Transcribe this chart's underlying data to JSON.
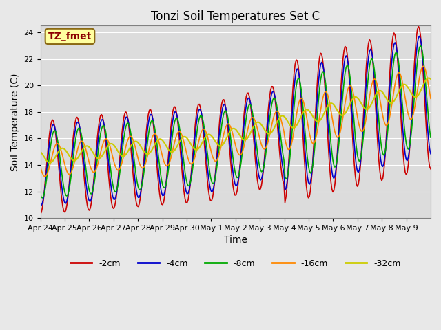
{
  "title": "Tonzi Soil Temperatures Set C",
  "xlabel": "Time",
  "ylabel": "Soil Temperature (C)",
  "ylim": [
    10,
    24.5
  ],
  "yticks": [
    10,
    12,
    14,
    16,
    18,
    20,
    22,
    24
  ],
  "background_color": "#e8e8e8",
  "plot_bg_color": "#dcdcdc",
  "annotation_text": "TZ_fmet",
  "annotation_color": "#8b0000",
  "annotation_bg": "#ffffa0",
  "annotation_border": "#8b6914",
  "series_colors": {
    "-2cm": "#cc0000",
    "-4cm": "#0000cc",
    "-8cm": "#00aa00",
    "-16cm": "#ff8800",
    "-32cm": "#cccc00"
  },
  "x_tick_labels": [
    "Apr 24",
    "Apr 25",
    "Apr 26",
    "Apr 27",
    "Apr 28",
    "Apr 29",
    "Apr 30",
    "May 1",
    "May 2",
    "May 3",
    "May 4",
    "May 5",
    "May 6",
    "May 7",
    "May 8",
    "May 9"
  ],
  "n_points": 384,
  "n_days": 16
}
